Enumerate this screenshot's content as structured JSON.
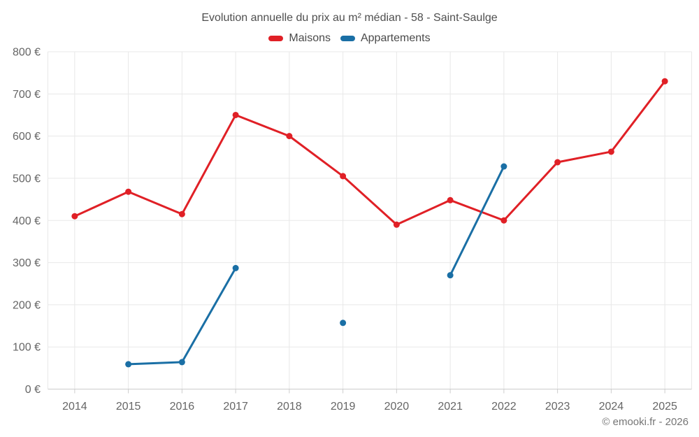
{
  "title": "Evolution annuelle du prix au m² médian - 58 - Saint-Saulge",
  "footer": "© emooki.fr - 2026",
  "chart_data": {
    "type": "line",
    "title": "Evolution annuelle du prix au m² médian - 58 - Saint-Saulge",
    "categories": [
      "2014",
      "2015",
      "2016",
      "2017",
      "2018",
      "2019",
      "2020",
      "2021",
      "2022",
      "2023",
      "2024",
      "2025"
    ],
    "series": [
      {
        "name": "Maisons",
        "color": "#e02026",
        "values": [
          410,
          468,
          415,
          650,
          600,
          505,
          390,
          448,
          400,
          538,
          563,
          730
        ]
      },
      {
        "name": "Appartements",
        "color": "#1a6fa5",
        "values": [
          null,
          59,
          64,
          287,
          null,
          157,
          null,
          270,
          528,
          null,
          null,
          null
        ]
      }
    ],
    "xlabel": "",
    "ylabel": "",
    "ylim": [
      0,
      800
    ],
    "ytick_values": [
      0,
      100,
      200,
      300,
      400,
      500,
      600,
      700,
      800
    ],
    "ytick_labels": [
      "0 €",
      "100 €",
      "200 €",
      "300 €",
      "400 €",
      "500 €",
      "600 €",
      "700 €",
      "800 €"
    ],
    "grid": true,
    "legend_position": "top",
    "marker": "circle"
  },
  "style": {
    "grid_color": "#e8e8e8",
    "axis_color": "#cccccc",
    "tick_label_color": "#666666",
    "background": "#ffffff"
  }
}
